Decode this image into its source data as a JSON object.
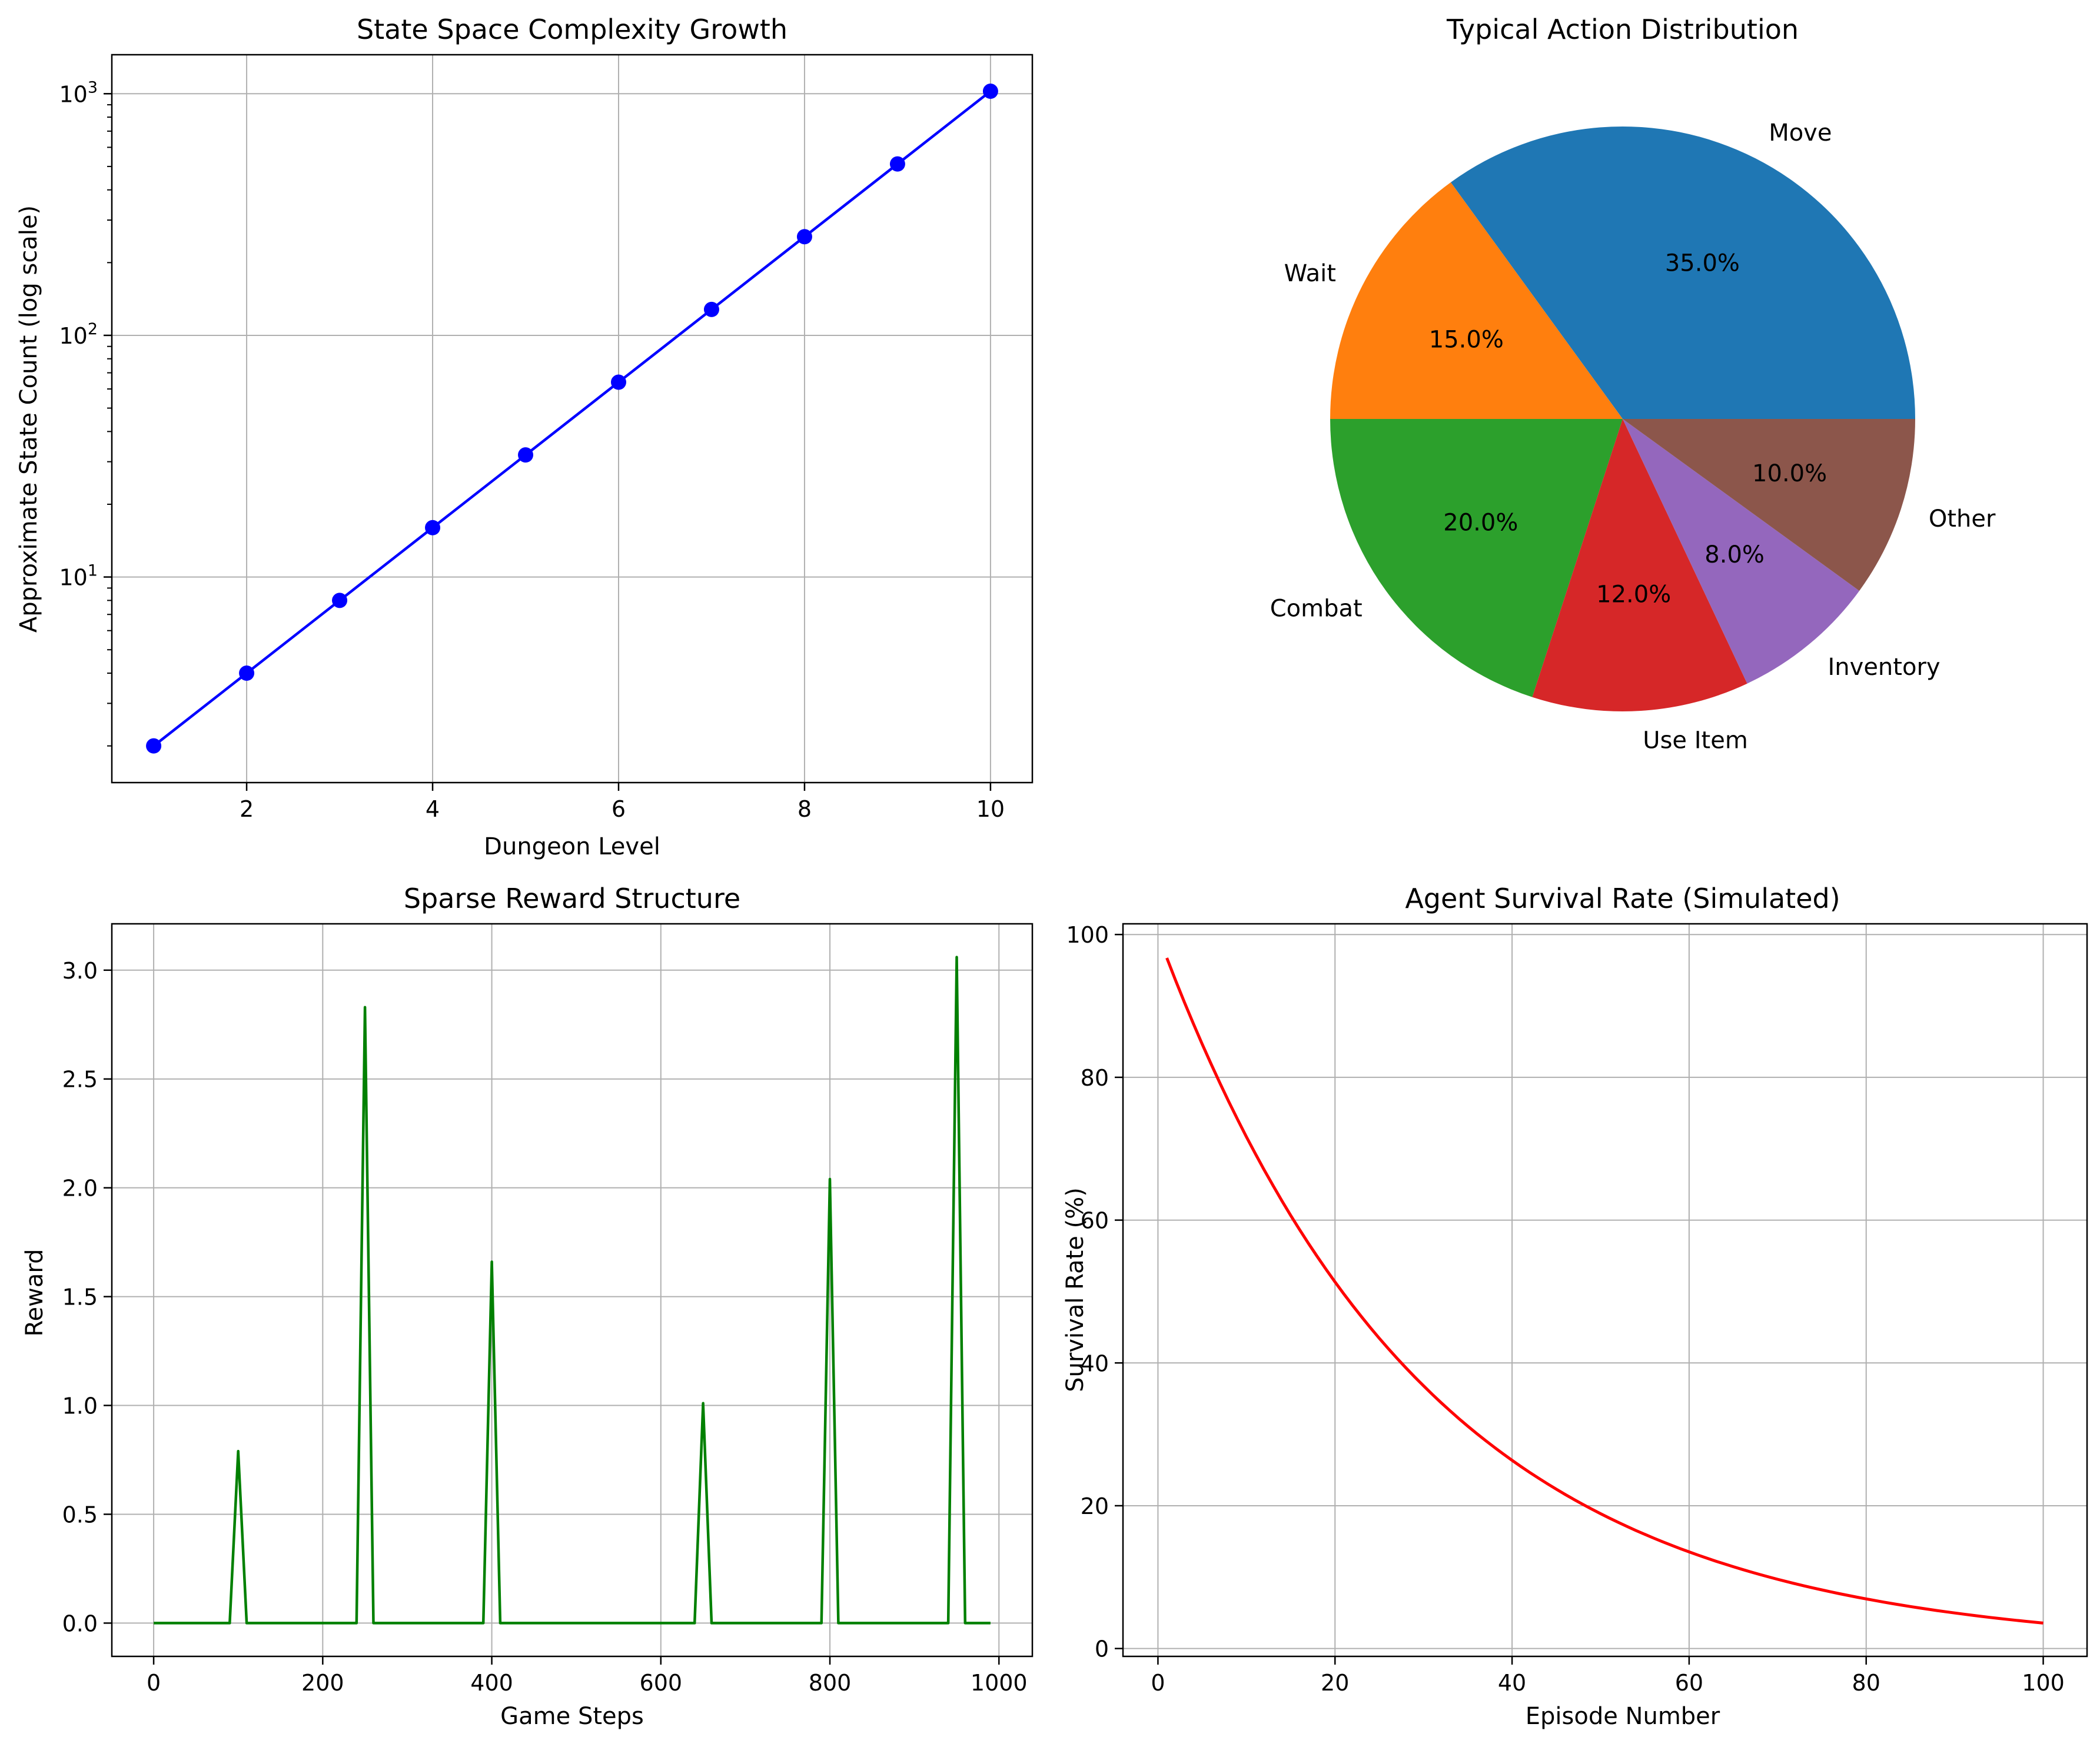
{
  "chart_data": [
    {
      "type": "line",
      "title": "State Space Complexity Growth",
      "xlabel": "Dungeon Level",
      "ylabel": "Approximate State Count (log scale)",
      "yscale": "log",
      "grid": true,
      "x": [
        1,
        2,
        3,
        4,
        5,
        6,
        7,
        8,
        9,
        10
      ],
      "series": [
        {
          "values": [
            2,
            4,
            8,
            16,
            32,
            64,
            128,
            256,
            512,
            1024
          ],
          "color": "#0000ff",
          "marker": "circle"
        }
      ],
      "xlim": [
        0.55,
        10.45
      ],
      "ylim": [
        1.41,
        1450
      ],
      "xticks": [
        2,
        4,
        6,
        8,
        10
      ],
      "xtick_labels": [
        "2",
        "4",
        "6",
        "8",
        "10"
      ],
      "yticks": [
        10,
        100,
        1000
      ],
      "ytick_labels": [
        {
          "base": "10",
          "exp": "1"
        },
        {
          "base": "10",
          "exp": "2"
        },
        {
          "base": "10",
          "exp": "3"
        }
      ]
    },
    {
      "type": "pie",
      "title": "Typical Action Distribution",
      "slices": [
        {
          "label": "Move",
          "value": 35,
          "pct_label": "35.0%",
          "color": "#1f77b4"
        },
        {
          "label": "Wait",
          "value": 15,
          "pct_label": "15.0%",
          "color": "#ff7f0e"
        },
        {
          "label": "Combat",
          "value": 20,
          "pct_label": "20.0%",
          "color": "#2ca02c"
        },
        {
          "label": "Use Item",
          "value": 12,
          "pct_label": "12.0%",
          "color": "#d62728"
        },
        {
          "label": "Inventory",
          "value": 8,
          "pct_label": "8.0%",
          "color": "#9467bd"
        },
        {
          "label": "Other",
          "value": 10,
          "pct_label": "10.0%",
          "color": "#8c564b"
        }
      ]
    },
    {
      "type": "line",
      "title": "Sparse Reward Structure",
      "xlabel": "Game Steps",
      "ylabel": "Reward",
      "grid": true,
      "x": [
        0,
        90,
        100,
        110,
        240,
        250,
        260,
        390,
        400,
        410,
        640,
        650,
        660,
        790,
        800,
        810,
        940,
        950,
        960,
        990
      ],
      "series": [
        {
          "values": [
            0,
            0,
            0.79,
            0,
            0,
            2.83,
            0,
            0,
            1.66,
            0,
            0,
            1.01,
            0,
            0,
            2.04,
            0,
            0,
            3.06,
            0,
            0
          ],
          "color": "#008000"
        }
      ],
      "xlim": [
        -49.5,
        1039.5
      ],
      "ylim": [
        -0.153,
        3.213
      ],
      "xticks": [
        0,
        200,
        400,
        600,
        800,
        1000
      ],
      "xtick_labels": [
        "0",
        "200",
        "400",
        "600",
        "800",
        "1000"
      ],
      "yticks": [
        0,
        0.5,
        1.0,
        1.5,
        2.0,
        2.5,
        3.0
      ],
      "ytick_labels": [
        "0.0",
        "0.5",
        "1.0",
        "1.5",
        "2.0",
        "2.5",
        "3.0"
      ]
    },
    {
      "type": "line",
      "title": "Agent Survival Rate (Simulated)",
      "xlabel": "Episode Number",
      "ylabel": "Survival Rate (%)",
      "grid": true,
      "curve": "100 * exp(-x / 30)",
      "x": [
        1,
        5,
        10,
        15,
        20,
        25,
        30,
        35,
        40,
        45,
        50,
        55,
        60,
        65,
        70,
        75,
        80,
        85,
        90,
        95,
        100
      ],
      "series": [
        {
          "values": [
            96.7,
            84.6,
            71.7,
            60.7,
            51.3,
            43.5,
            36.8,
            31.1,
            26.4,
            22.3,
            18.9,
            16.0,
            13.5,
            11.5,
            9.7,
            8.2,
            6.9,
            5.9,
            5.0,
            4.2,
            3.6
          ],
          "color": "#ff0000"
        }
      ],
      "xlim": [
        -3.95,
        104.95
      ],
      "ylim": [
        -1.1,
        101.5
      ],
      "xticks": [
        0,
        20,
        40,
        60,
        80,
        100
      ],
      "xtick_labels": [
        "0",
        "20",
        "40",
        "60",
        "80",
        "100"
      ],
      "yticks": [
        0,
        20,
        40,
        60,
        80,
        100
      ],
      "ytick_labels": [
        "0",
        "20",
        "40",
        "60",
        "80",
        "100"
      ]
    }
  ]
}
